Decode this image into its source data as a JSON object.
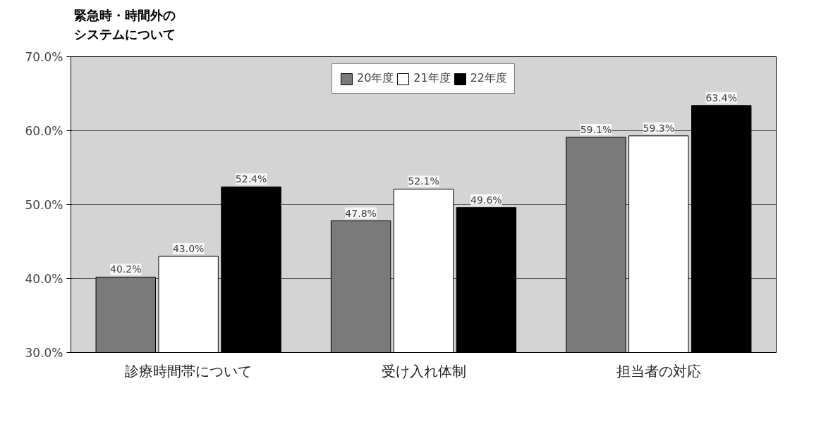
{
  "chart_data": {
    "type": "bar",
    "title": "緊急時・時間外のシステムについて",
    "categories": [
      "診療時間帯について",
      "受け入れ体制",
      "担当者の対応"
    ],
    "series": [
      {
        "name": "20年度",
        "color": "#7a7a7a",
        "values": [
          40.2,
          47.8,
          59.1
        ]
      },
      {
        "name": "21年度",
        "color": "#ffffff",
        "values": [
          43.0,
          52.1,
          59.3
        ]
      },
      {
        "name": "22年度",
        "color": "#000000",
        "values": [
          52.4,
          49.6,
          63.4
        ]
      }
    ],
    "value_labels": [
      [
        "40.2%",
        "47.8%",
        "59.1%"
      ],
      [
        "43.0%",
        "52.1%",
        "59.3%"
      ],
      [
        "52.4%",
        "49.6%",
        "63.4%"
      ]
    ],
    "ylim": [
      30,
      70
    ],
    "yticks": [
      {
        "value": 30,
        "label": "30.0%"
      },
      {
        "value": 40,
        "label": "40.0%"
      },
      {
        "value": 50,
        "label": "50.0%"
      },
      {
        "value": 60,
        "label": "60.0%"
      },
      {
        "value": 70,
        "label": "70.0%"
      }
    ],
    "grid": "y",
    "legend": "top"
  }
}
